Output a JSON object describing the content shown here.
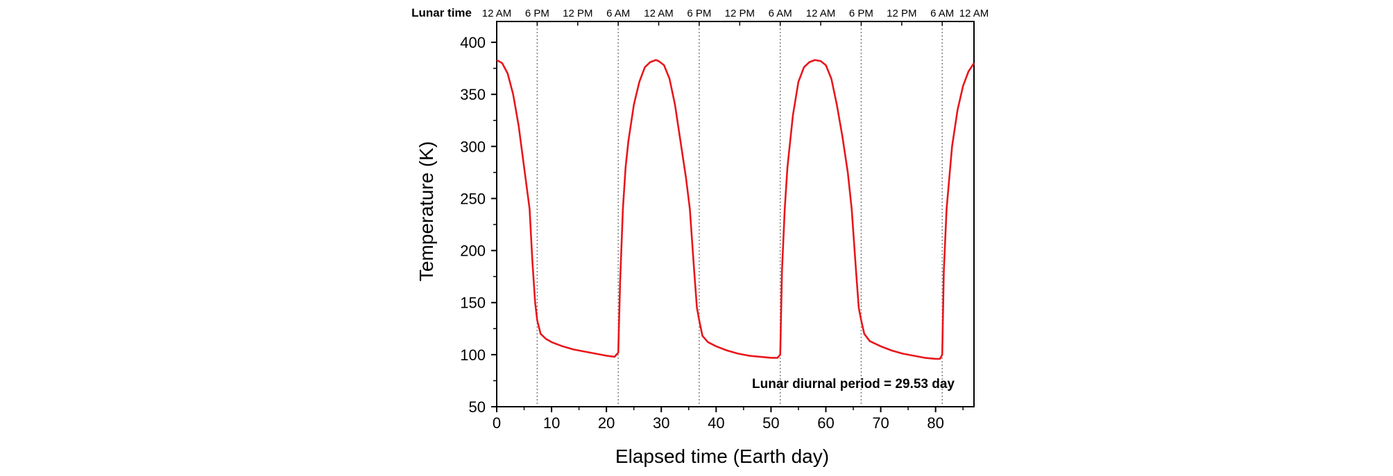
{
  "chart_data": {
    "type": "line",
    "xlabel": "Elapsed time (Earth day)",
    "ylabel": "Temperature (K)",
    "xlim": [
      0,
      87
    ],
    "ylim": [
      50,
      420
    ],
    "xticks": [
      0,
      10,
      20,
      30,
      40,
      50,
      60,
      70,
      80
    ],
    "yticks": [
      50,
      100,
      150,
      200,
      250,
      300,
      350,
      400
    ],
    "top_axis": {
      "label": "Lunar time",
      "ticks": [
        {
          "x": 0,
          "label": "12 AM"
        },
        {
          "x": 7.38,
          "label": "6 PM"
        },
        {
          "x": 14.77,
          "label": "12 PM"
        },
        {
          "x": 22.15,
          "label": "6 AM"
        },
        {
          "x": 29.53,
          "label": "12 AM"
        },
        {
          "x": 36.91,
          "label": "6 PM"
        },
        {
          "x": 44.3,
          "label": "12 PM"
        },
        {
          "x": 51.68,
          "label": "6 AM"
        },
        {
          "x": 59.06,
          "label": "12 AM"
        },
        {
          "x": 66.44,
          "label": "6 PM"
        },
        {
          "x": 73.83,
          "label": "12 PM"
        },
        {
          "x": 81.21,
          "label": "6 AM"
        },
        {
          "x": 87,
          "label": "12 AM"
        }
      ]
    },
    "vlines": [
      7.38,
      22.15,
      36.91,
      51.68,
      66.44,
      81.21
    ],
    "annotation": "Lunar diurnal period = 29.53 day",
    "grid": false,
    "series": [
      {
        "color": "#e8161b",
        "x": [
          0,
          1,
          2,
          3,
          4,
          5,
          6,
          6.5,
          7,
          7.38,
          8,
          9,
          10,
          12,
          14,
          16,
          18,
          20,
          21.5,
          22.15,
          22.5,
          23,
          23.5,
          24,
          25,
          26,
          27,
          28,
          29,
          29.53,
          30.5,
          31.5,
          32.5,
          33.5,
          34.5,
          35.2,
          36,
          36.5,
          36.91,
          37.5,
          38.5,
          40,
          42,
          44,
          46,
          48,
          50,
          51.2,
          51.68,
          52,
          52.5,
          53,
          54,
          55,
          56,
          57,
          58,
          59.06,
          60,
          61,
          62,
          63,
          64,
          64.7,
          65.5,
          66,
          66.44,
          67,
          68,
          70,
          72,
          74,
          76,
          78,
          80,
          80.8,
          81.21,
          81.5,
          82,
          83,
          84,
          85,
          86,
          87
        ],
        "y": [
          383,
          380,
          370,
          350,
          320,
          280,
          240,
          190,
          150,
          133,
          120,
          115,
          112,
          108,
          105,
          103,
          101,
          99,
          98,
          102,
          170,
          240,
          280,
          305,
          340,
          362,
          376,
          381,
          383,
          382,
          378,
          365,
          340,
          305,
          270,
          240,
          180,
          145,
          133,
          118,
          112,
          108,
          104,
          101,
          99,
          98,
          97,
          97,
          100,
          180,
          240,
          280,
          330,
          362,
          376,
          381,
          383,
          382,
          378,
          365,
          340,
          310,
          275,
          240,
          180,
          145,
          133,
          120,
          113,
          108,
          104,
          101,
          99,
          97,
          96,
          96,
          100,
          180,
          240,
          300,
          335,
          358,
          372,
          380
        ]
      }
    ]
  }
}
